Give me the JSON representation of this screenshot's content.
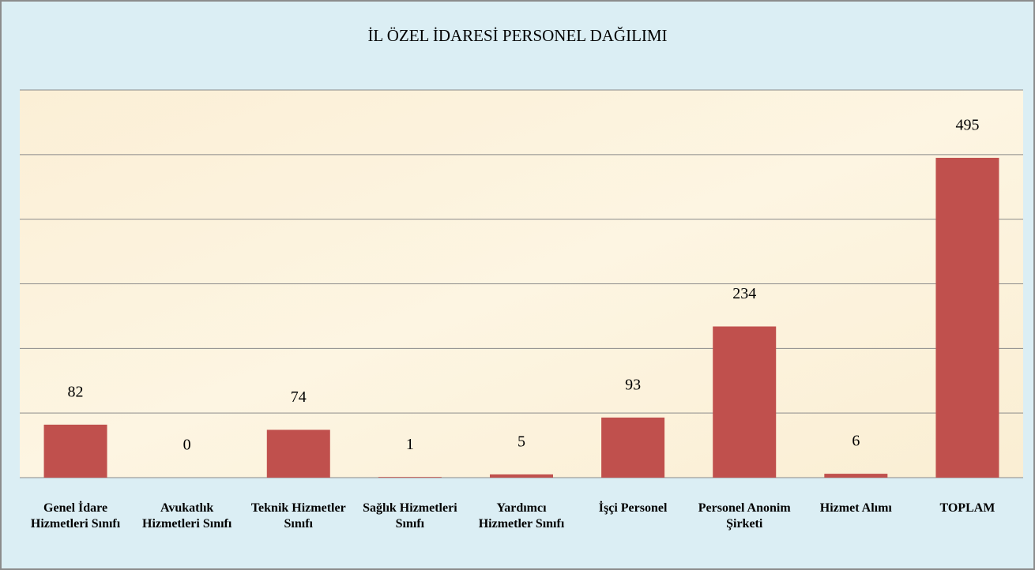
{
  "chart_data": {
    "type": "bar",
    "title": "İL ÖZEL İDARESİ PERSONEL DAĞILIMI",
    "categories": [
      "Genel İdare Hizmetleri Sınıfı",
      "Avukatlık Hizmetleri Sınıfı",
      "Teknik Hizmetler Sınıfı",
      "Sağlık Hizmetleri Sınıfı",
      "Yardımcı Hizmetler Sınıfı",
      "İşçi Personel",
      "Personel Anonim Şirketi",
      "Hizmet Alımı",
      "TOPLAM"
    ],
    "values": [
      82,
      0,
      74,
      1,
      5,
      93,
      234,
      6,
      495
    ],
    "color": "#c0504d",
    "ylim": [
      0,
      600
    ],
    "yticks": [
      0,
      100,
      200,
      300,
      400,
      500,
      600
    ],
    "grid": true
  }
}
